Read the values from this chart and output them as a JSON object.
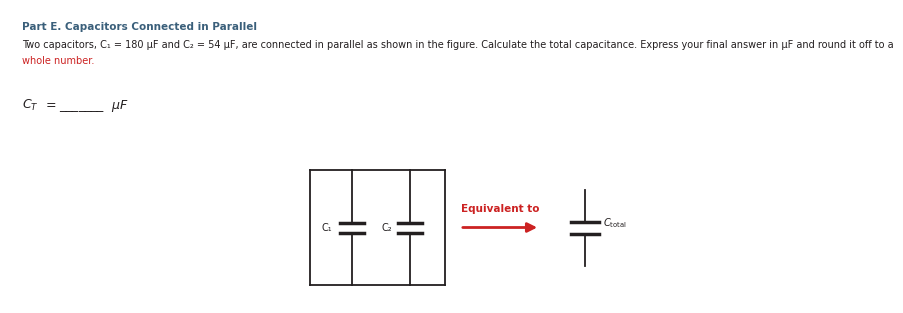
{
  "title": "Part E. Capacitors Connected in Parallel",
  "title_color": "#3a5f7a",
  "title_fontsize": 7.5,
  "body_color_black": "#231f20",
  "body_color_red": "#cc2222",
  "fig_bg": "#ffffff",
  "circuit_color": "#231f20",
  "arrow_color": "#cc2222",
  "eq_text": "Equivalent to",
  "eq_text_color": "#cc2222",
  "label_c1": "C₁",
  "label_c2": "C₂",
  "label_ctotal_sub": "total",
  "body_line1": "Two capacitors, C₁ = 180 μF and C₂ = 54 μF, are connected in parallel as shown in the figure. Calculate the total capacitance. Express your final answer in μF and round it off to a",
  "body_line2": "whole number.",
  "answer_line": "Cᵀ = _______ μF"
}
